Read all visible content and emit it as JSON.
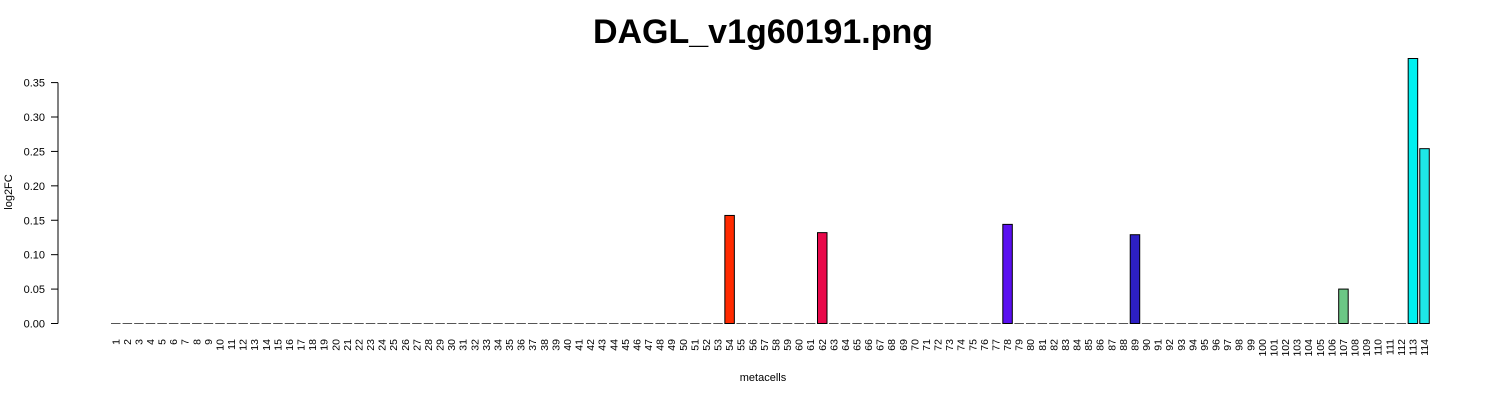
{
  "chart_data": {
    "type": "bar",
    "title": "DAGL_v1g60191.png",
    "xlabel": "metacells",
    "ylabel": "log2FC",
    "ylim": [
      0,
      0.385
    ],
    "yticks": [
      "0.00",
      "0.05",
      "0.10",
      "0.15",
      "0.20",
      "0.25",
      "0.30",
      "0.35"
    ],
    "ytick_values": [
      0,
      0.05,
      0.1,
      0.15,
      0.2,
      0.25,
      0.3,
      0.35
    ],
    "grid": false,
    "legend": "none",
    "default_bar_color": "#bebebe",
    "categories": [
      "1",
      "2",
      "3",
      "4",
      "5",
      "6",
      "7",
      "8",
      "9",
      "10",
      "11",
      "12",
      "13",
      "14",
      "15",
      "16",
      "17",
      "18",
      "19",
      "20",
      "21",
      "22",
      "23",
      "24",
      "25",
      "26",
      "27",
      "28",
      "29",
      "30",
      "31",
      "32",
      "33",
      "34",
      "35",
      "36",
      "37",
      "38",
      "39",
      "40",
      "41",
      "42",
      "43",
      "44",
      "45",
      "46",
      "47",
      "48",
      "49",
      "50",
      "51",
      "52",
      "53",
      "54",
      "55",
      "56",
      "57",
      "58",
      "59",
      "60",
      "61",
      "62",
      "63",
      "64",
      "65",
      "66",
      "67",
      "68",
      "69",
      "70",
      "71",
      "72",
      "73",
      "74",
      "75",
      "76",
      "77",
      "78",
      "79",
      "80",
      "81",
      "82",
      "83",
      "84",
      "85",
      "86",
      "87",
      "88",
      "89",
      "90",
      "91",
      "92",
      "93",
      "94",
      "95",
      "96",
      "97",
      "98",
      "99",
      "100",
      "101",
      "102",
      "103",
      "104",
      "105",
      "106",
      "107",
      "108",
      "109",
      "110",
      "111",
      "112",
      "113",
      "114"
    ],
    "nonzero": [
      {
        "category": "54",
        "value": 0.157,
        "color": "#ff2a00"
      },
      {
        "category": "62",
        "value": 0.132,
        "color": "#e8094a"
      },
      {
        "category": "78",
        "value": 0.144,
        "color": "#5a10f0"
      },
      {
        "category": "89",
        "value": 0.129,
        "color": "#2d1fc4"
      },
      {
        "category": "107",
        "value": 0.05,
        "color": "#6cc785"
      },
      {
        "category": "113",
        "value": 0.385,
        "color": "#00f0f0"
      },
      {
        "category": "114",
        "value": 0.254,
        "color": "#1ee8e8"
      }
    ]
  }
}
